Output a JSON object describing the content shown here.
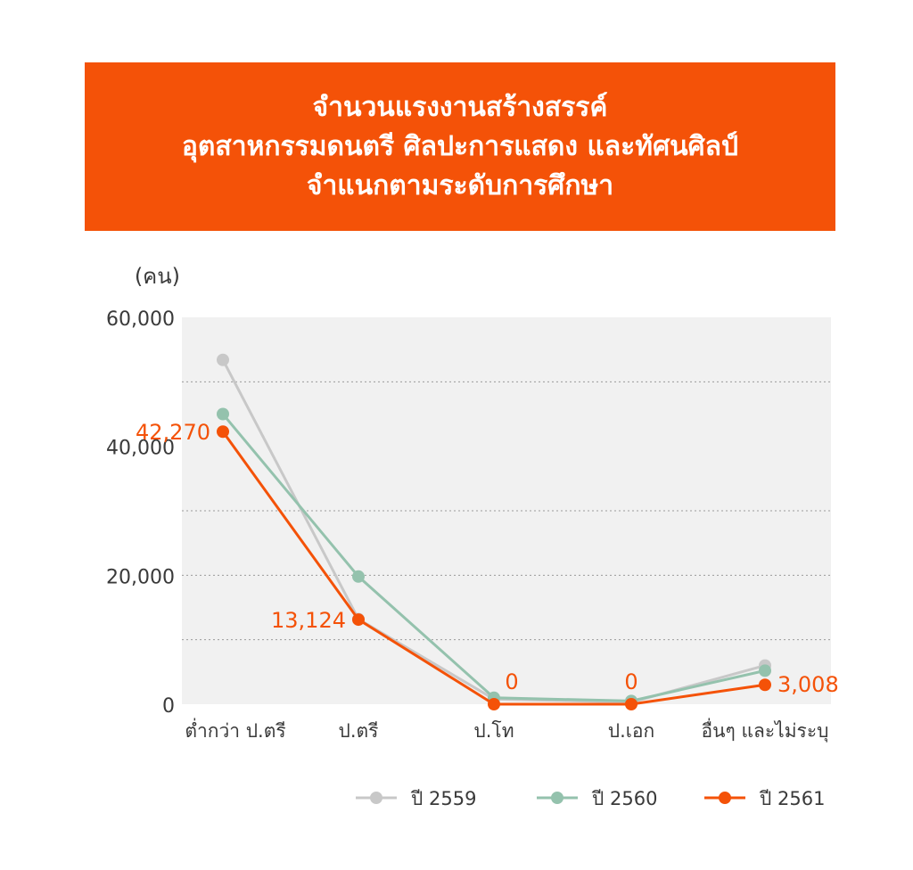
{
  "title_lines": [
    "จำนวนแรงงานสร้างสรรค์",
    "อุตสาหกรรมดนตรี ศิลปะการแสดง และทัศนศิลป์",
    "จำแนกตามระดับการศึกษา"
  ],
  "colors": {
    "banner": "#f45208",
    "plot_bg": "#f1f1f1",
    "grid": "#9a9a9a",
    "text": "#3a3a3a",
    "label_accent": "#f45208"
  },
  "chart_data": {
    "type": "line",
    "unit_label": "(คน)",
    "categories": [
      "ต่ำกว่า ป.ตรี",
      "ป.ตรี",
      "ป.โท",
      "ป.เอก",
      "อื่นๆ และไม่ระบุ"
    ],
    "ylim": [
      0,
      60000
    ],
    "yticks": [
      {
        "value": 0,
        "label": "0"
      },
      {
        "value": 20000,
        "label": "20,000"
      },
      {
        "value": 40000,
        "label": "40,000"
      },
      {
        "value": 60000,
        "label": "60,000"
      }
    ],
    "gridlines": [
      10000,
      20000,
      30000,
      50000
    ],
    "grid": true,
    "legend_position": "bottom",
    "series": [
      {
        "name": "ปี 2559",
        "color": "#c8c8c8",
        "values": [
          53400,
          13200,
          800,
          300,
          6000
        ]
      },
      {
        "name": "ปี 2560",
        "color": "#94c2ad",
        "values": [
          45000,
          19800,
          1000,
          500,
          5200
        ]
      },
      {
        "name": "ปี 2561",
        "color": "#f45208",
        "values": [
          42270,
          13124,
          0,
          0,
          3008
        ]
      }
    ],
    "data_labels": [
      {
        "series": 2,
        "index": 0,
        "text": "42,270",
        "position": "left"
      },
      {
        "series": 2,
        "index": 1,
        "text": "13,124",
        "position": "left"
      },
      {
        "series": 2,
        "index": 2,
        "text": "0",
        "position": "above-right"
      },
      {
        "series": 2,
        "index": 3,
        "text": "0",
        "position": "above"
      },
      {
        "series": 2,
        "index": 4,
        "text": "3,008",
        "position": "right"
      }
    ]
  }
}
